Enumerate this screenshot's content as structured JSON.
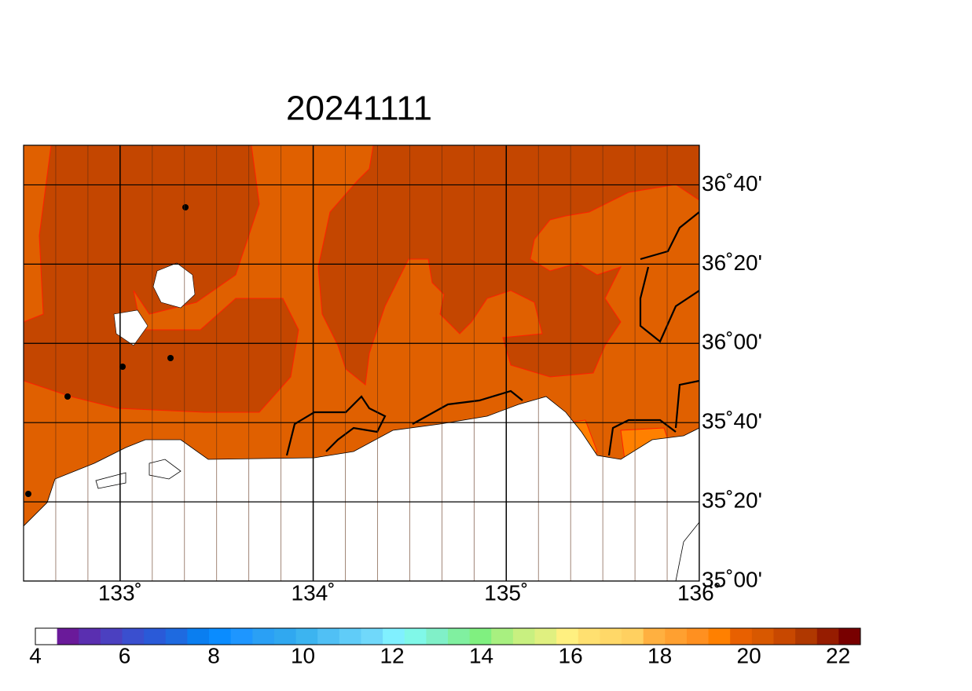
{
  "map": {
    "title": "20241111",
    "xlim": [
      132.5,
      136
    ],
    "ylim": [
      35,
      36.8333
    ],
    "xticks": [
      {
        "value": 133,
        "label": "133˚"
      },
      {
        "value": 134,
        "label": "134˚"
      },
      {
        "value": 135,
        "label": "135˚"
      },
      {
        "value": 136,
        "label": "136˚"
      }
    ],
    "yticks": [
      {
        "value": 35,
        "label": "35˚00'"
      },
      {
        "value": 35.3333,
        "label": "35˚20'"
      },
      {
        "value": 35.6667,
        "label": "35˚40'"
      },
      {
        "value": 36,
        "label": "36˚00'"
      },
      {
        "value": 36.3333,
        "label": "36˚20'"
      },
      {
        "value": 36.6667,
        "label": "36˚40'"
      }
    ],
    "colorbar": {
      "range": [
        4,
        22.5
      ],
      "ticks": [
        4,
        6,
        8,
        10,
        12,
        14,
        16,
        18,
        20,
        22
      ],
      "colors": [
        "#ffffff",
        "#6a1a9a",
        "#5a2fb0",
        "#4b40c0",
        "#3a4fcf",
        "#2a5ad8",
        "#1e6ae0",
        "#0a7ef0",
        "#0a8cff",
        "#1e96ff",
        "#2aa0f5",
        "#30a8f0",
        "#3cb4f0",
        "#50c0f5",
        "#60ccf8",
        "#70d8fa",
        "#80f0ff",
        "#80f8e8",
        "#80f0c8",
        "#80f0a0",
        "#80f080",
        "#a8f080",
        "#c8f080",
        "#e0f080",
        "#fff080",
        "#ffe070",
        "#ffd868",
        "#ffd060",
        "#ffb040",
        "#ffa030",
        "#ff9020",
        "#ff8000",
        "#e86000",
        "#d85800",
        "#c84800",
        "#b03800",
        "#961c00",
        "#780000"
      ]
    }
  }
}
